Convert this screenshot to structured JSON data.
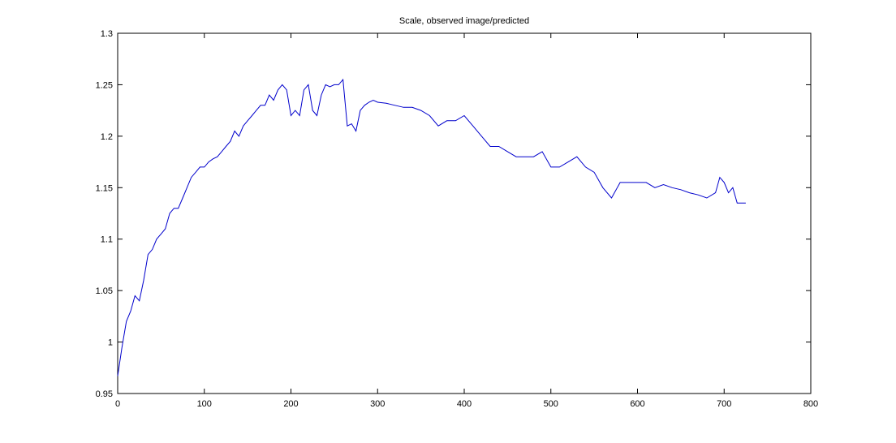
{
  "chart_data": {
    "type": "line",
    "title": "Scale, observed image/predicted",
    "xlabel": "",
    "ylabel": "",
    "xlim": [
      0,
      800
    ],
    "ylim": [
      0.95,
      1.3
    ],
    "xticks": [
      0,
      100,
      200,
      300,
      400,
      500,
      600,
      700,
      800
    ],
    "yticks": [
      0.95,
      1,
      1.05,
      1.1,
      1.15,
      1.2,
      1.25,
      1.3
    ],
    "xtick_labels": [
      "0",
      "100",
      "200",
      "300",
      "400",
      "500",
      "600",
      "700",
      "800"
    ],
    "ytick_labels": [
      "0.95",
      "1",
      "1.05",
      "1.1",
      "1.15",
      "1.2",
      "1.25",
      "1.3"
    ],
    "grid": false,
    "legend": "none",
    "line_color": "#0000cc",
    "series": [
      {
        "x": [
          0,
          5,
          10,
          15,
          20,
          25,
          30,
          35,
          40,
          45,
          50,
          55,
          60,
          65,
          70,
          75,
          80,
          85,
          90,
          95,
          100,
          105,
          110,
          115,
          120,
          125,
          130,
          135,
          140,
          145,
          150,
          155,
          160,
          165,
          170,
          175,
          180,
          185,
          190,
          195,
          200,
          205,
          210,
          215,
          220,
          225,
          230,
          235,
          240,
          245,
          250,
          255,
          260,
          265,
          270,
          275,
          280,
          285,
          290,
          295,
          300,
          310,
          320,
          330,
          340,
          350,
          360,
          370,
          380,
          390,
          400,
          410,
          420,
          430,
          440,
          450,
          460,
          470,
          480,
          490,
          500,
          510,
          520,
          530,
          540,
          550,
          560,
          570,
          580,
          590,
          600,
          610,
          620,
          630,
          640,
          650,
          660,
          670,
          680,
          690,
          695,
          700,
          705,
          710,
          715,
          720,
          725
        ],
        "y": [
          0.967,
          0.995,
          1.02,
          1.03,
          1.045,
          1.04,
          1.06,
          1.085,
          1.09,
          1.1,
          1.105,
          1.11,
          1.125,
          1.13,
          1.13,
          1.14,
          1.15,
          1.16,
          1.165,
          1.17,
          1.17,
          1.175,
          1.178,
          1.18,
          1.185,
          1.19,
          1.195,
          1.205,
          1.2,
          1.21,
          1.215,
          1.22,
          1.225,
          1.23,
          1.23,
          1.24,
          1.235,
          1.245,
          1.25,
          1.245,
          1.22,
          1.225,
          1.22,
          1.245,
          1.25,
          1.225,
          1.22,
          1.24,
          1.25,
          1.248,
          1.25,
          1.25,
          1.255,
          1.21,
          1.212,
          1.205,
          1.225,
          1.23,
          1.233,
          1.235,
          1.233,
          1.232,
          1.23,
          1.228,
          1.228,
          1.225,
          1.22,
          1.21,
          1.215,
          1.215,
          1.22,
          1.21,
          1.2,
          1.19,
          1.19,
          1.185,
          1.18,
          1.18,
          1.18,
          1.185,
          1.17,
          1.17,
          1.175,
          1.18,
          1.17,
          1.165,
          1.15,
          1.14,
          1.155,
          1.155,
          1.155,
          1.155,
          1.15,
          1.153,
          1.15,
          1.148,
          1.145,
          1.143,
          1.14,
          1.145,
          1.16,
          1.155,
          1.145,
          1.15,
          1.135,
          1.135,
          1.135
        ]
      }
    ]
  }
}
